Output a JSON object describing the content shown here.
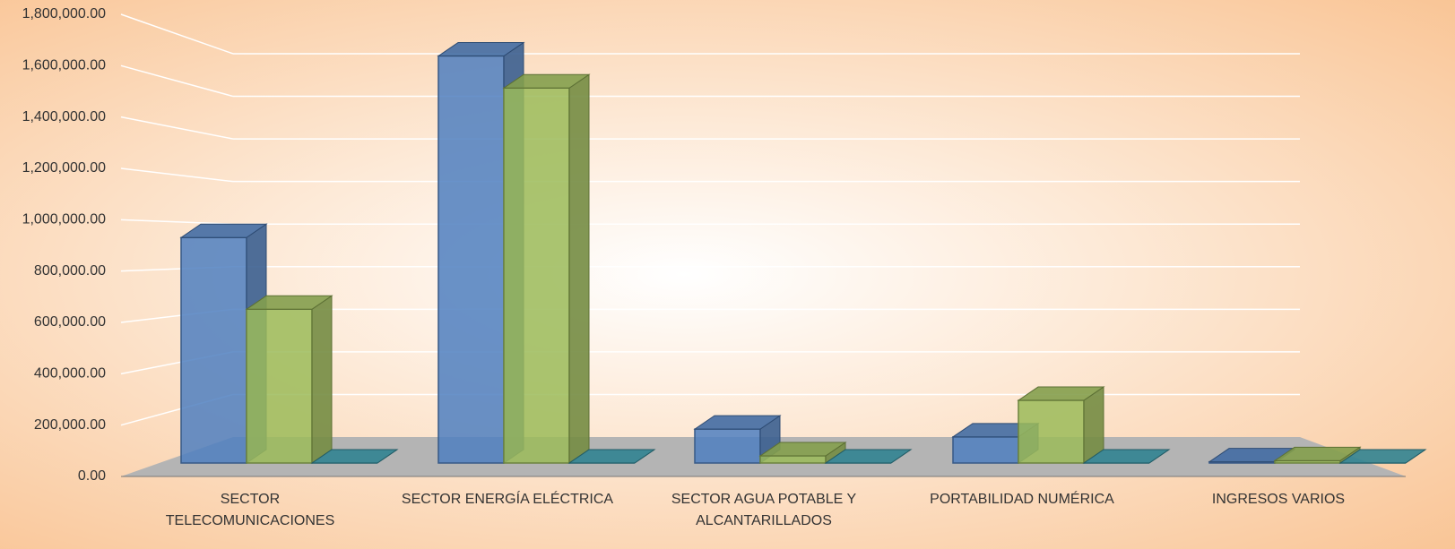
{
  "chart_data": {
    "type": "bar3d",
    "categories": [
      "SECTOR TELECOMUNICACIONES",
      "SECTOR ENERGÍA ELÉCTRICA",
      "SECTOR AGUA POTABLE Y ALCANTARILLADOS",
      "PORTABILIDAD NUMÉRICA",
      "INGRESOS VARIOS"
    ],
    "series": [
      {
        "color": "#4f7fc0",
        "values": [
          950000,
          1715000,
          143000,
          110000,
          5000
        ]
      },
      {
        "color": "#9bbb59",
        "values": [
          648000,
          1580000,
          30000,
          264000,
          10000
        ]
      },
      {
        "color": "#3a9aaa",
        "values": [
          0,
          0,
          0,
          0,
          0
        ]
      }
    ],
    "ylim": [
      0,
      1800000
    ],
    "yticks": [
      {
        "value": 0,
        "label": "0.00"
      },
      {
        "value": 200000,
        "label": "200,000.00"
      },
      {
        "value": 400000,
        "label": "400,000.00"
      },
      {
        "value": 600000,
        "label": "600,000.00"
      },
      {
        "value": 800000,
        "label": "800,000.00"
      },
      {
        "value": 1000000,
        "label": "1,000,000.00"
      },
      {
        "value": 1200000,
        "label": "1,200,000.00"
      },
      {
        "value": 1400000,
        "label": "1,400,000.00"
      },
      {
        "value": 1600000,
        "label": "1,600,000.00"
      },
      {
        "value": 1800000,
        "label": "1,800,000.00"
      }
    ],
    "grid": true
  }
}
